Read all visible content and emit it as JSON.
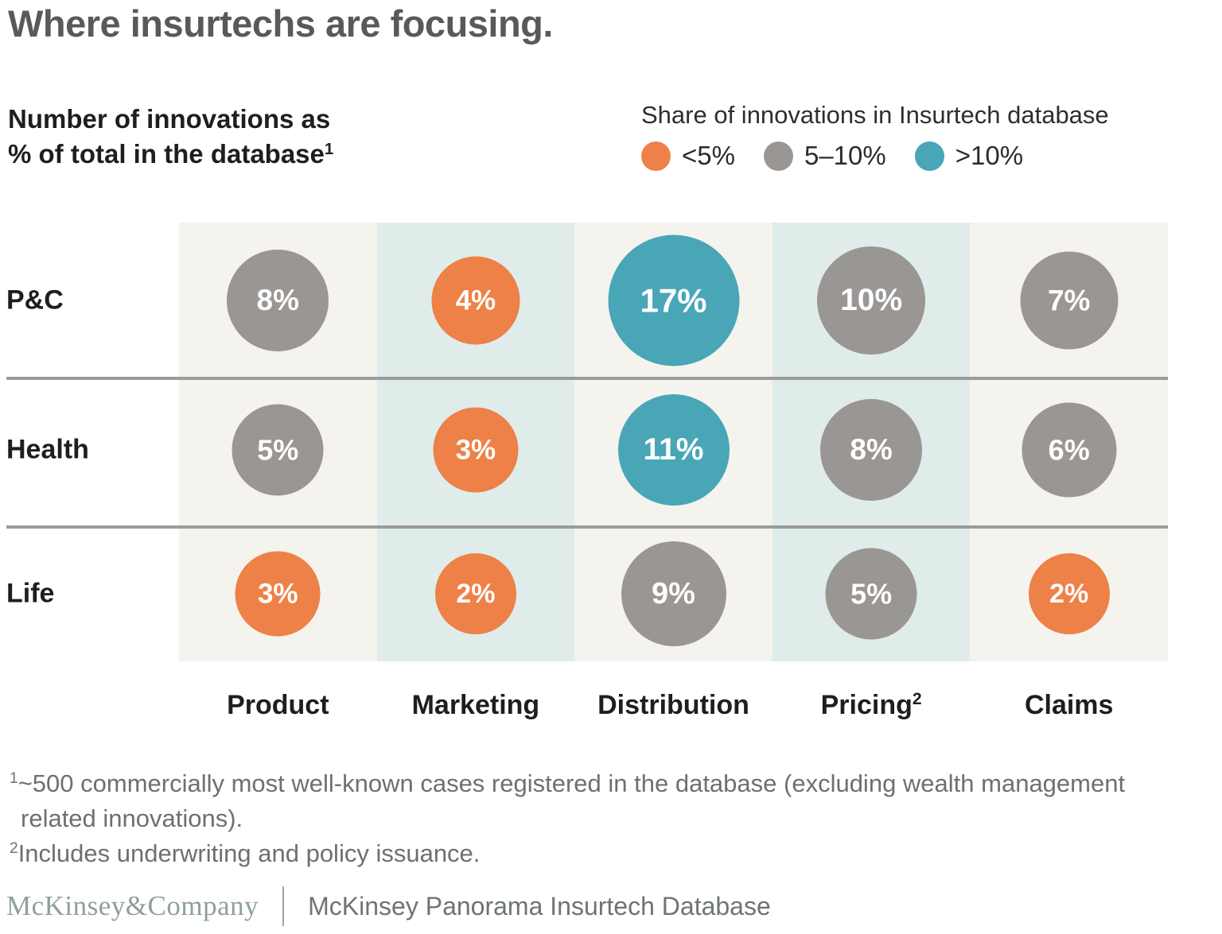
{
  "title": "Where insurtechs are focusing.",
  "header": {
    "measure_line1": "Number of innovations as",
    "measure_line2": "% of total in the database",
    "measure_sup": "1"
  },
  "legend": {
    "title": "Share of innovations in Insurtech database",
    "items": [
      {
        "label": "<5%",
        "color": "#ED8147"
      },
      {
        "label": "5–10%",
        "color": "#9A9694"
      },
      {
        "label": ">10%",
        "color": "#48A6B7"
      }
    ]
  },
  "chart_data": {
    "type": "heatmap",
    "subtype": "bubble-matrix",
    "title": "Where insurtechs are focusing.",
    "measure": "Number of innovations as % of total in the database",
    "rows": [
      "P&C",
      "Health",
      "Life"
    ],
    "columns": [
      "Product",
      "Marketing",
      "Distribution",
      "Pricing",
      "Claims"
    ],
    "column_superscripts": [
      "",
      "",
      "",
      "2",
      ""
    ],
    "values": [
      [
        8,
        4,
        17,
        10,
        7
      ],
      [
        5,
        3,
        11,
        8,
        6
      ],
      [
        3,
        2,
        9,
        5,
        2
      ]
    ],
    "value_unit": "%",
    "legend_title": "Share of innovations in Insurtech database",
    "color_bins": [
      {
        "label": "<5%",
        "min": 0,
        "max": 4.99,
        "color": "#ED8147"
      },
      {
        "label": "5–10%",
        "min": 5,
        "max": 10,
        "color": "#9A9694"
      },
      {
        "label": ">10%",
        "min": 10.01,
        "max": 100,
        "color": "#48A6B7"
      }
    ],
    "column_band_colors": [
      "#F5F3ED",
      "#DFECEA",
      "#F5F3ED",
      "#DFECEA",
      "#F5F3ED"
    ],
    "bubble_text_color": "#FFFFFF",
    "size_encoding": "bubble diameter increases with value"
  },
  "footnotes": [
    {
      "sup": "1",
      "text": "~500 commercially most well-known cases registered in the database (excluding wealth management related innovations)."
    },
    {
      "sup": "2",
      "text": "Includes underwriting and policy issuance."
    }
  ],
  "footer": {
    "logo": "McKinsey&Company",
    "source": "McKinsey Panorama Insurtech Database"
  }
}
